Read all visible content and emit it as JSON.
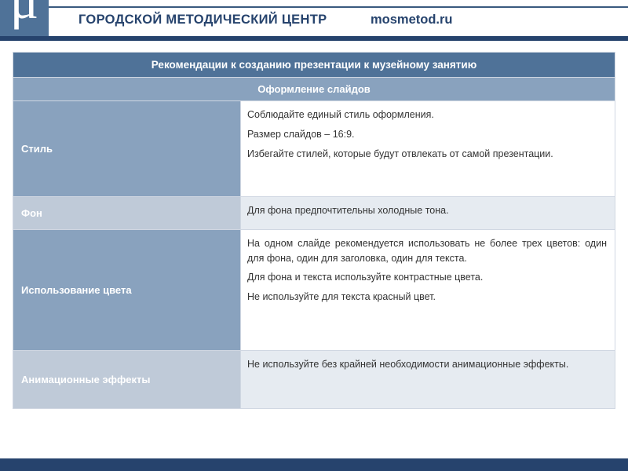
{
  "header": {
    "logo_letter": "μ",
    "title": "ГОРОДСКОЙ МЕТОДИЧЕСКИЙ ЦЕНТР",
    "domain": "mosmetod.ru"
  },
  "table": {
    "title": "Рекомендации к созданию презентации к музейному занятию",
    "subtitle": "Оформление слайдов",
    "rows": [
      {
        "label": "Стиль",
        "lines": [
          "Соблюдайте единый стиль оформления.",
          "Размер слайдов – 16:9.",
          "Избегайте стилей, которые будут отвлекать от самой презентации."
        ]
      },
      {
        "label": "Фон",
        "lines": [
          "Для фона предпочтительны холодные тона."
        ]
      },
      {
        "label": "Использование цвета",
        "lines": [
          "На одном слайде рекомендуется использовать не более трех цветов: один для фона, один для заголовка, один для текста.",
          "Для фона и текста используйте контрастные цвета.",
          "Не используйте для текста красный цвет."
        ]
      },
      {
        "label": "Анимационные эффекты",
        "lines": [
          "Не используйте без крайней необходимости анимационные эффекты."
        ]
      }
    ]
  },
  "colors": {
    "brand_dark": "#26436d",
    "brand_mid": "#4f7298",
    "brand_light": "#89a2be",
    "brand_xlight": "#bfcad8",
    "alt_bg": "#e6ebf1",
    "border": "#d0d7e2"
  }
}
